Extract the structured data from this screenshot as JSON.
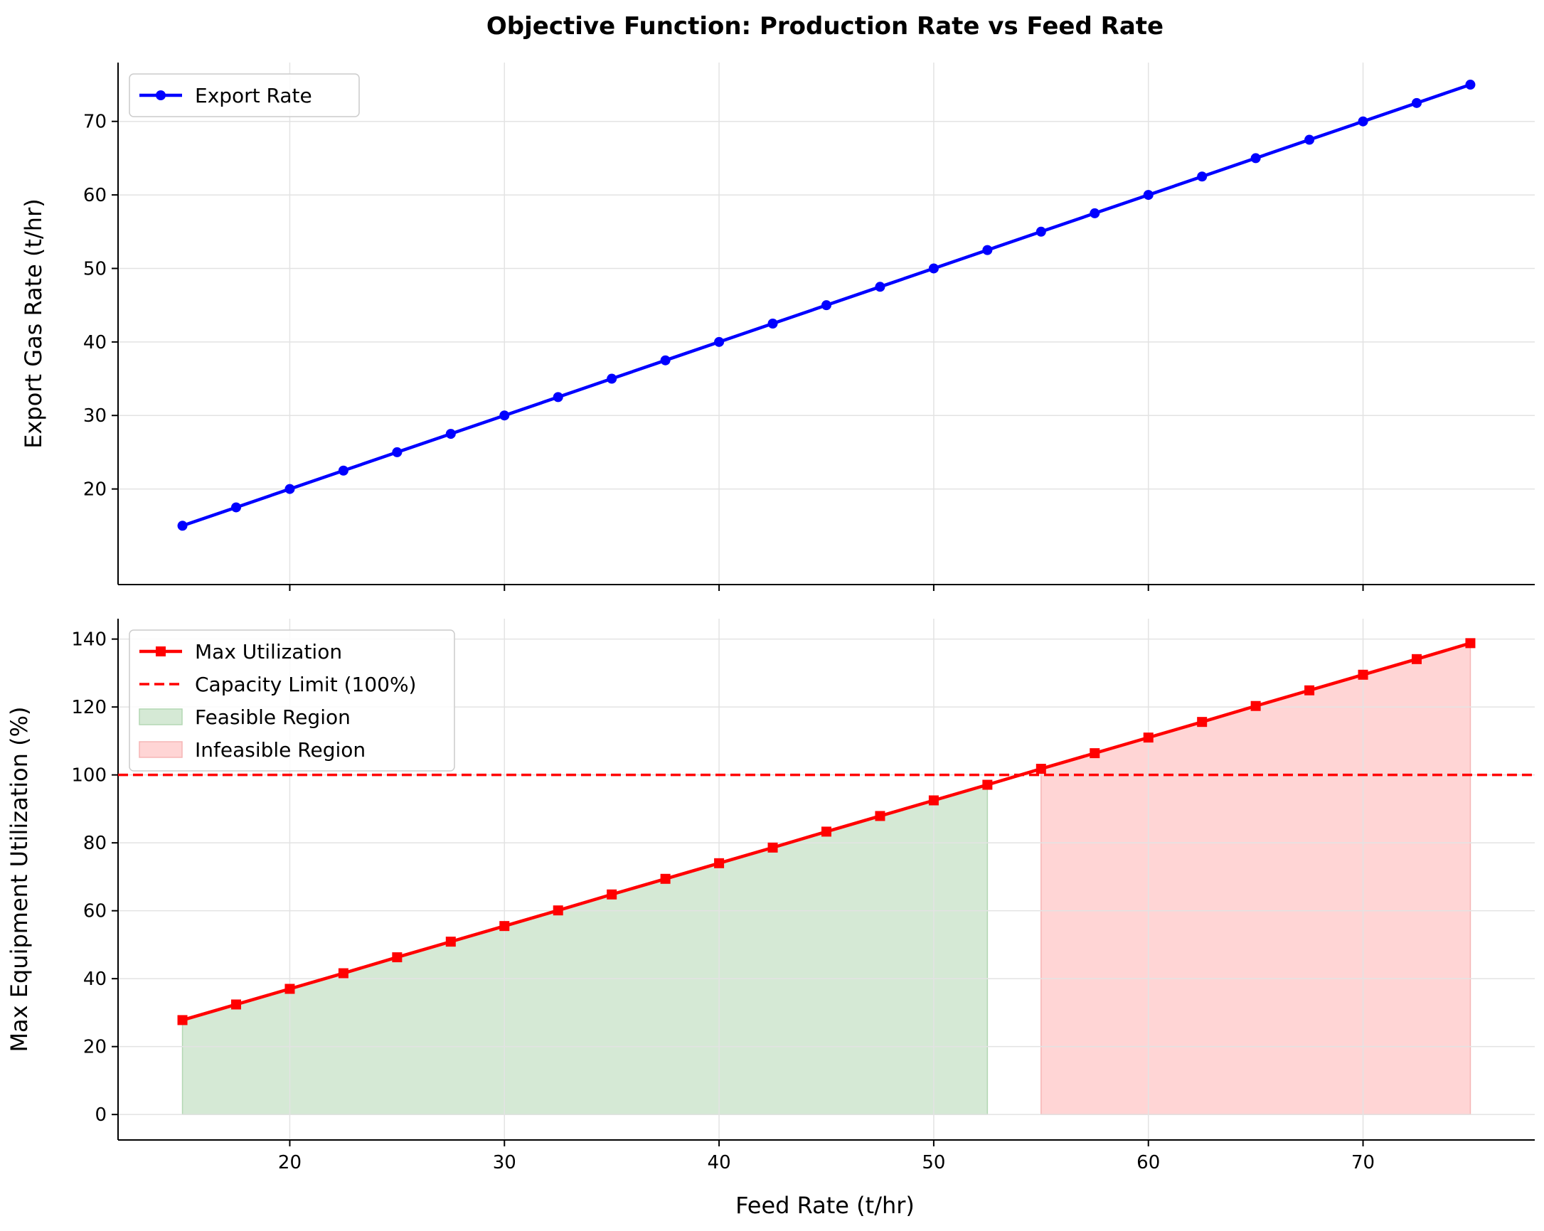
{
  "figure": {
    "title": "Objective Function: Production Rate vs Feed Rate",
    "xlabel": "Feed Rate (t/hr)"
  },
  "chart_data": [
    {
      "type": "line",
      "ylabel": "Export Gas Rate (t/hr)",
      "xlim": [
        12,
        78
      ],
      "ylim": [
        7,
        78
      ],
      "xticks": [
        20,
        30,
        40,
        50,
        60,
        70
      ],
      "yticks": [
        20,
        30,
        40,
        50,
        60,
        70
      ],
      "grid": true,
      "legend_position": "upper-left",
      "series": [
        {
          "name": "Export Rate",
          "color": "#0000ff",
          "marker": "circle",
          "x": [
            15,
            17.5,
            20,
            22.5,
            25,
            27.5,
            30,
            32.5,
            35,
            37.5,
            40,
            42.5,
            45,
            47.5,
            50,
            52.5,
            55,
            57.5,
            60,
            62.5,
            65,
            67.5,
            70,
            72.5,
            75
          ],
          "y": [
            15,
            17.5,
            20,
            22.5,
            25,
            27.5,
            30,
            32.5,
            35,
            37.5,
            40,
            42.5,
            45,
            47.5,
            50,
            52.5,
            55,
            57.5,
            60,
            62.5,
            65,
            67.5,
            70,
            72.5,
            75
          ]
        }
      ]
    },
    {
      "type": "line",
      "ylabel": "Max Equipment Utilization (%)",
      "xlim": [
        12,
        78
      ],
      "ylim": [
        -7.5,
        146
      ],
      "xticks": [
        20,
        30,
        40,
        50,
        60,
        70
      ],
      "yticks": [
        0,
        20,
        40,
        60,
        80,
        100,
        120,
        140
      ],
      "grid": true,
      "legend_position": "upper-left",
      "series": [
        {
          "name": "Max Utilization",
          "color": "#ff0000",
          "marker": "square",
          "x": [
            15,
            17.5,
            20,
            22.5,
            25,
            27.5,
            30,
            32.5,
            35,
            37.5,
            40,
            42.5,
            45,
            47.5,
            50,
            52.5,
            55,
            57.5,
            60,
            62.5,
            65,
            67.5,
            70,
            72.5,
            75
          ],
          "y": [
            27.8,
            32.4,
            37.0,
            41.6,
            46.3,
            50.9,
            55.5,
            60.1,
            64.8,
            69.4,
            74.0,
            78.6,
            83.3,
            87.9,
            92.5,
            97.1,
            101.8,
            106.4,
            111.0,
            115.6,
            120.3,
            124.9,
            129.5,
            134.1,
            138.8
          ]
        }
      ],
      "reference_line": {
        "name": "Capacity Limit (100%)",
        "y": 100,
        "color": "#ff0000",
        "style": "dashed"
      },
      "regions": [
        {
          "name": "Feasible Region",
          "x_from": 15,
          "x_to": 52.5,
          "color": "#d5e9d5",
          "edge": "#b3d7b3"
        },
        {
          "name": "Infeasible Region",
          "x_from": 55,
          "x_to": 75,
          "color": "#ffd5d5",
          "edge": "#f5b5b5"
        }
      ]
    }
  ]
}
